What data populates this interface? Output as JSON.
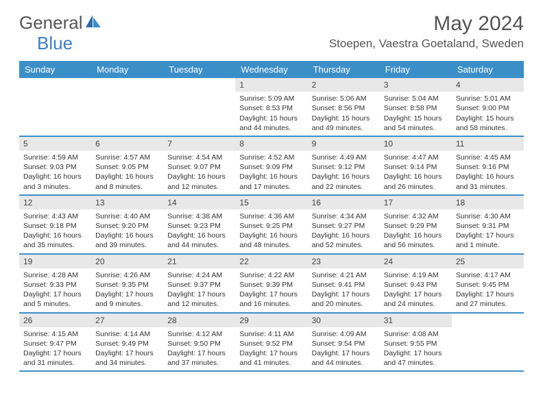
{
  "logo": {
    "word1": "General",
    "word2": "Blue"
  },
  "header": {
    "month_title": "May 2024",
    "location": "Stoepen, Vaestra Goetaland, Sweden"
  },
  "colors": {
    "header_bar": "#3b8fc9",
    "rule": "#3b8fc9",
    "daynum_bg": "#e8e8e8",
    "logo_blue": "#3b7fc4",
    "text": "#333333",
    "muted": "#555555",
    "bg": "#ffffff"
  },
  "weekdays": [
    "Sunday",
    "Monday",
    "Tuesday",
    "Wednesday",
    "Thursday",
    "Friday",
    "Saturday"
  ],
  "weeks": [
    [
      {
        "n": "",
        "sunrise": "",
        "sunset": "",
        "daylight": ""
      },
      {
        "n": "",
        "sunrise": "",
        "sunset": "",
        "daylight": ""
      },
      {
        "n": "",
        "sunrise": "",
        "sunset": "",
        "daylight": ""
      },
      {
        "n": "1",
        "sunrise": "Sunrise: 5:09 AM",
        "sunset": "Sunset: 8:53 PM",
        "daylight": "Daylight: 15 hours and 44 minutes."
      },
      {
        "n": "2",
        "sunrise": "Sunrise: 5:06 AM",
        "sunset": "Sunset: 8:56 PM",
        "daylight": "Daylight: 15 hours and 49 minutes."
      },
      {
        "n": "3",
        "sunrise": "Sunrise: 5:04 AM",
        "sunset": "Sunset: 8:58 PM",
        "daylight": "Daylight: 15 hours and 54 minutes."
      },
      {
        "n": "4",
        "sunrise": "Sunrise: 5:01 AM",
        "sunset": "Sunset: 9:00 PM",
        "daylight": "Daylight: 15 hours and 58 minutes."
      }
    ],
    [
      {
        "n": "5",
        "sunrise": "Sunrise: 4:59 AM",
        "sunset": "Sunset: 9:03 PM",
        "daylight": "Daylight: 16 hours and 3 minutes."
      },
      {
        "n": "6",
        "sunrise": "Sunrise: 4:57 AM",
        "sunset": "Sunset: 9:05 PM",
        "daylight": "Daylight: 16 hours and 8 minutes."
      },
      {
        "n": "7",
        "sunrise": "Sunrise: 4:54 AM",
        "sunset": "Sunset: 9:07 PM",
        "daylight": "Daylight: 16 hours and 12 minutes."
      },
      {
        "n": "8",
        "sunrise": "Sunrise: 4:52 AM",
        "sunset": "Sunset: 9:09 PM",
        "daylight": "Daylight: 16 hours and 17 minutes."
      },
      {
        "n": "9",
        "sunrise": "Sunrise: 4:49 AM",
        "sunset": "Sunset: 9:12 PM",
        "daylight": "Daylight: 16 hours and 22 minutes."
      },
      {
        "n": "10",
        "sunrise": "Sunrise: 4:47 AM",
        "sunset": "Sunset: 9:14 PM",
        "daylight": "Daylight: 16 hours and 26 minutes."
      },
      {
        "n": "11",
        "sunrise": "Sunrise: 4:45 AM",
        "sunset": "Sunset: 9:16 PM",
        "daylight": "Daylight: 16 hours and 31 minutes."
      }
    ],
    [
      {
        "n": "12",
        "sunrise": "Sunrise: 4:43 AM",
        "sunset": "Sunset: 9:18 PM",
        "daylight": "Daylight: 16 hours and 35 minutes."
      },
      {
        "n": "13",
        "sunrise": "Sunrise: 4:40 AM",
        "sunset": "Sunset: 9:20 PM",
        "daylight": "Daylight: 16 hours and 39 minutes."
      },
      {
        "n": "14",
        "sunrise": "Sunrise: 4:38 AM",
        "sunset": "Sunset: 9:23 PM",
        "daylight": "Daylight: 16 hours and 44 minutes."
      },
      {
        "n": "15",
        "sunrise": "Sunrise: 4:36 AM",
        "sunset": "Sunset: 9:25 PM",
        "daylight": "Daylight: 16 hours and 48 minutes."
      },
      {
        "n": "16",
        "sunrise": "Sunrise: 4:34 AM",
        "sunset": "Sunset: 9:27 PM",
        "daylight": "Daylight: 16 hours and 52 minutes."
      },
      {
        "n": "17",
        "sunrise": "Sunrise: 4:32 AM",
        "sunset": "Sunset: 9:29 PM",
        "daylight": "Daylight: 16 hours and 56 minutes."
      },
      {
        "n": "18",
        "sunrise": "Sunrise: 4:30 AM",
        "sunset": "Sunset: 9:31 PM",
        "daylight": "Daylight: 17 hours and 1 minute."
      }
    ],
    [
      {
        "n": "19",
        "sunrise": "Sunrise: 4:28 AM",
        "sunset": "Sunset: 9:33 PM",
        "daylight": "Daylight: 17 hours and 5 minutes."
      },
      {
        "n": "20",
        "sunrise": "Sunrise: 4:26 AM",
        "sunset": "Sunset: 9:35 PM",
        "daylight": "Daylight: 17 hours and 9 minutes."
      },
      {
        "n": "21",
        "sunrise": "Sunrise: 4:24 AM",
        "sunset": "Sunset: 9:37 PM",
        "daylight": "Daylight: 17 hours and 12 minutes."
      },
      {
        "n": "22",
        "sunrise": "Sunrise: 4:22 AM",
        "sunset": "Sunset: 9:39 PM",
        "daylight": "Daylight: 17 hours and 16 minutes."
      },
      {
        "n": "23",
        "sunrise": "Sunrise: 4:21 AM",
        "sunset": "Sunset: 9:41 PM",
        "daylight": "Daylight: 17 hours and 20 minutes."
      },
      {
        "n": "24",
        "sunrise": "Sunrise: 4:19 AM",
        "sunset": "Sunset: 9:43 PM",
        "daylight": "Daylight: 17 hours and 24 minutes."
      },
      {
        "n": "25",
        "sunrise": "Sunrise: 4:17 AM",
        "sunset": "Sunset: 9:45 PM",
        "daylight": "Daylight: 17 hours and 27 minutes."
      }
    ],
    [
      {
        "n": "26",
        "sunrise": "Sunrise: 4:15 AM",
        "sunset": "Sunset: 9:47 PM",
        "daylight": "Daylight: 17 hours and 31 minutes."
      },
      {
        "n": "27",
        "sunrise": "Sunrise: 4:14 AM",
        "sunset": "Sunset: 9:49 PM",
        "daylight": "Daylight: 17 hours and 34 minutes."
      },
      {
        "n": "28",
        "sunrise": "Sunrise: 4:12 AM",
        "sunset": "Sunset: 9:50 PM",
        "daylight": "Daylight: 17 hours and 37 minutes."
      },
      {
        "n": "29",
        "sunrise": "Sunrise: 4:11 AM",
        "sunset": "Sunset: 9:52 PM",
        "daylight": "Daylight: 17 hours and 41 minutes."
      },
      {
        "n": "30",
        "sunrise": "Sunrise: 4:09 AM",
        "sunset": "Sunset: 9:54 PM",
        "daylight": "Daylight: 17 hours and 44 minutes."
      },
      {
        "n": "31",
        "sunrise": "Sunrise: 4:08 AM",
        "sunset": "Sunset: 9:55 PM",
        "daylight": "Daylight: 17 hours and 47 minutes."
      },
      {
        "n": "",
        "sunrise": "",
        "sunset": "",
        "daylight": ""
      }
    ]
  ]
}
